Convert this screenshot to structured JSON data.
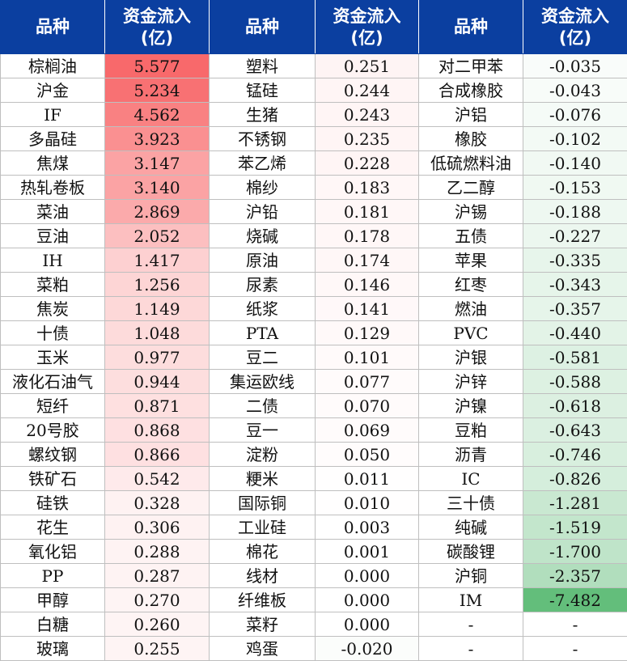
{
  "header": {
    "name_label": "品种",
    "flow_label": "资金流入\n(亿)"
  },
  "colors": {
    "header_bg": "#0b3fa0",
    "positive_max": "#f8696b",
    "negative_max": "#63be7b",
    "neutral": "#ffffff"
  },
  "scale": {
    "pos_max": 5.577,
    "neg_min": -7.482
  },
  "rows": [
    [
      [
        "棕榈油",
        "5.577"
      ],
      [
        "塑料",
        "0.251"
      ],
      [
        "对二甲苯",
        "-0.035"
      ]
    ],
    [
      [
        "沪金",
        "5.234"
      ],
      [
        "锰硅",
        "0.244"
      ],
      [
        "合成橡胶",
        "-0.043"
      ]
    ],
    [
      [
        "IF",
        "4.562"
      ],
      [
        "生猪",
        "0.243"
      ],
      [
        "沪铝",
        "-0.076"
      ]
    ],
    [
      [
        "多晶硅",
        "3.923"
      ],
      [
        "不锈钢",
        "0.235"
      ],
      [
        "橡胶",
        "-0.102"
      ]
    ],
    [
      [
        "焦煤",
        "3.147"
      ],
      [
        "苯乙烯",
        "0.228"
      ],
      [
        "低硫燃料油",
        "-0.140"
      ]
    ],
    [
      [
        "热轧卷板",
        "3.140"
      ],
      [
        "棉纱",
        "0.183"
      ],
      [
        "乙二醇",
        "-0.153"
      ]
    ],
    [
      [
        "菜油",
        "2.869"
      ],
      [
        "沪铅",
        "0.181"
      ],
      [
        "沪锡",
        "-0.188"
      ]
    ],
    [
      [
        "豆油",
        "2.052"
      ],
      [
        "烧碱",
        "0.178"
      ],
      [
        "五债",
        "-0.227"
      ]
    ],
    [
      [
        "IH",
        "1.417"
      ],
      [
        "原油",
        "0.174"
      ],
      [
        "苹果",
        "-0.335"
      ]
    ],
    [
      [
        "菜粕",
        "1.256"
      ],
      [
        "尿素",
        "0.146"
      ],
      [
        "红枣",
        "-0.343"
      ]
    ],
    [
      [
        "焦炭",
        "1.149"
      ],
      [
        "纸浆",
        "0.141"
      ],
      [
        "燃油",
        "-0.357"
      ]
    ],
    [
      [
        "十债",
        "1.048"
      ],
      [
        "PTA",
        "0.129"
      ],
      [
        "PVC",
        "-0.440"
      ]
    ],
    [
      [
        "玉米",
        "0.977"
      ],
      [
        "豆二",
        "0.101"
      ],
      [
        "沪银",
        "-0.581"
      ]
    ],
    [
      [
        "液化石油气",
        "0.944"
      ],
      [
        "集运欧线",
        "0.077"
      ],
      [
        "沪锌",
        "-0.588"
      ]
    ],
    [
      [
        "短纤",
        "0.871"
      ],
      [
        "二债",
        "0.070"
      ],
      [
        "沪镍",
        "-0.618"
      ]
    ],
    [
      [
        "20号胶",
        "0.868"
      ],
      [
        "豆一",
        "0.069"
      ],
      [
        "豆粕",
        "-0.643"
      ]
    ],
    [
      [
        "螺纹钢",
        "0.866"
      ],
      [
        "淀粉",
        "0.050"
      ],
      [
        "沥青",
        "-0.746"
      ]
    ],
    [
      [
        "铁矿石",
        "0.542"
      ],
      [
        "粳米",
        "0.011"
      ],
      [
        "IC",
        "-0.826"
      ]
    ],
    [
      [
        "硅铁",
        "0.328"
      ],
      [
        "国际铜",
        "0.010"
      ],
      [
        "三十债",
        "-1.281"
      ]
    ],
    [
      [
        "花生",
        "0.306"
      ],
      [
        "工业硅",
        "0.003"
      ],
      [
        "纯碱",
        "-1.519"
      ]
    ],
    [
      [
        "氧化铝",
        "0.288"
      ],
      [
        "棉花",
        "0.001"
      ],
      [
        "碳酸锂",
        "-1.700"
      ]
    ],
    [
      [
        "PP",
        "0.287"
      ],
      [
        "线材",
        "0.000"
      ],
      [
        "沪铜",
        "-2.357"
      ]
    ],
    [
      [
        "甲醇",
        "0.270"
      ],
      [
        "纤维板",
        "0.000"
      ],
      [
        "IM",
        "-7.482"
      ]
    ],
    [
      [
        "白糖",
        "0.260"
      ],
      [
        "菜籽",
        "0.000"
      ],
      [
        "-",
        "-"
      ]
    ],
    [
      [
        "玻璃",
        "0.255"
      ],
      [
        "鸡蛋",
        "-0.020"
      ],
      [
        "-",
        "-"
      ]
    ]
  ]
}
